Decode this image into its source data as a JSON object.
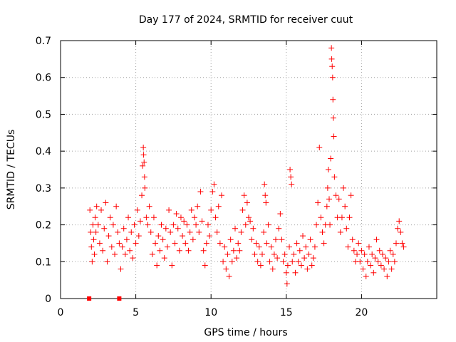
{
  "chart_data": {
    "type": "scatter",
    "title": "Day 177 of 2024, SRMTID for receiver cuut",
    "xlabel": "GPS time / hours",
    "ylabel": "SRMTID / TECUs",
    "xlim": [
      0,
      25
    ],
    "ylim": [
      0,
      0.7
    ],
    "xticks": [
      0,
      5,
      10,
      15,
      20
    ],
    "yticks": [
      0,
      0.1,
      0.2,
      0.3,
      0.4,
      0.5,
      0.6,
      0.7
    ],
    "xtick_labels": [
      "0",
      "5",
      "10",
      "15",
      "20"
    ],
    "ytick_labels": [
      "0",
      "0.1",
      "0.2",
      "0.3",
      "0.4",
      "0.5",
      "0.6",
      "0.7"
    ],
    "grid": true,
    "marker": "plus",
    "color": "#ff0000",
    "zero_markers": [
      {
        "x": 1.9,
        "y": 0
      },
      {
        "x": 3.9,
        "y": 0
      }
    ],
    "series": [
      {
        "name": "SRMTID",
        "points": [
          [
            1.95,
            0.24
          ],
          [
            2.0,
            0.18
          ],
          [
            2.05,
            0.14
          ],
          [
            2.1,
            0.1
          ],
          [
            2.15,
            0.2
          ],
          [
            2.2,
            0.16
          ],
          [
            2.25,
            0.12
          ],
          [
            2.3,
            0.22
          ],
          [
            2.35,
            0.18
          ],
          [
            2.4,
            0.25
          ],
          [
            2.5,
            0.2
          ],
          [
            2.6,
            0.15
          ],
          [
            2.7,
            0.24
          ],
          [
            2.8,
            0.13
          ],
          [
            2.9,
            0.19
          ],
          [
            3.0,
            0.26
          ],
          [
            3.1,
            0.1
          ],
          [
            3.2,
            0.17
          ],
          [
            3.3,
            0.22
          ],
          [
            3.4,
            0.14
          ],
          [
            3.5,
            0.2
          ],
          [
            3.6,
            0.12
          ],
          [
            3.7,
            0.25
          ],
          [
            3.8,
            0.18
          ],
          [
            3.9,
            0.15
          ],
          [
            4.0,
            0.08
          ],
          [
            4.1,
            0.14
          ],
          [
            4.2,
            0.19
          ],
          [
            4.3,
            0.12
          ],
          [
            4.4,
            0.16
          ],
          [
            4.5,
            0.22
          ],
          [
            4.6,
            0.13
          ],
          [
            4.7,
            0.18
          ],
          [
            4.8,
            0.11
          ],
          [
            4.9,
            0.2
          ],
          [
            5.0,
            0.15
          ],
          [
            5.1,
            0.24
          ],
          [
            5.2,
            0.17
          ],
          [
            5.3,
            0.21
          ],
          [
            5.4,
            0.28
          ],
          [
            5.45,
            0.36
          ],
          [
            5.5,
            0.41
          ],
          [
            5.52,
            0.39
          ],
          [
            5.55,
            0.37
          ],
          [
            5.58,
            0.33
          ],
          [
            5.6,
            0.3
          ],
          [
            5.7,
            0.22
          ],
          [
            5.8,
            0.2
          ],
          [
            5.9,
            0.25
          ],
          [
            6.0,
            0.18
          ],
          [
            6.1,
            0.12
          ],
          [
            6.2,
            0.22
          ],
          [
            6.3,
            0.15
          ],
          [
            6.4,
            0.09
          ],
          [
            6.5,
            0.17
          ],
          [
            6.6,
            0.13
          ],
          [
            6.7,
            0.2
          ],
          [
            6.8,
            0.16
          ],
          [
            6.9,
            0.11
          ],
          [
            7.0,
            0.19
          ],
          [
            7.1,
            0.14
          ],
          [
            7.2,
            0.24
          ],
          [
            7.3,
            0.18
          ],
          [
            7.4,
            0.09
          ],
          [
            7.5,
            0.2
          ],
          [
            7.6,
            0.15
          ],
          [
            7.7,
            0.23
          ],
          [
            7.8,
            0.19
          ],
          [
            7.9,
            0.13
          ],
          [
            8.0,
            0.22
          ],
          [
            8.1,
            0.17
          ],
          [
            8.2,
            0.21
          ],
          [
            8.3,
            0.15
          ],
          [
            8.4,
            0.2
          ],
          [
            8.5,
            0.13
          ],
          [
            8.6,
            0.18
          ],
          [
            8.7,
            0.24
          ],
          [
            8.8,
            0.16
          ],
          [
            8.9,
            0.22
          ],
          [
            9.0,
            0.2
          ],
          [
            9.1,
            0.25
          ],
          [
            9.2,
            0.18
          ],
          [
            9.3,
            0.29
          ],
          [
            9.4,
            0.21
          ],
          [
            9.5,
            0.13
          ],
          [
            9.6,
            0.09
          ],
          [
            9.7,
            0.15
          ],
          [
            9.8,
            0.2
          ],
          [
            9.9,
            0.17
          ],
          [
            10.0,
            0.24
          ],
          [
            10.1,
            0.29
          ],
          [
            10.2,
            0.31
          ],
          [
            10.3,
            0.22
          ],
          [
            10.4,
            0.18
          ],
          [
            10.5,
            0.25
          ],
          [
            10.6,
            0.15
          ],
          [
            10.7,
            0.28
          ],
          [
            10.8,
            0.1
          ],
          [
            10.9,
            0.14
          ],
          [
            11.0,
            0.08
          ],
          [
            11.1,
            0.12
          ],
          [
            11.2,
            0.06
          ],
          [
            11.3,
            0.16
          ],
          [
            11.4,
            0.1
          ],
          [
            11.5,
            0.13
          ],
          [
            11.6,
            0.19
          ],
          [
            11.7,
            0.11
          ],
          [
            11.8,
            0.15
          ],
          [
            11.9,
            0.13
          ],
          [
            12.0,
            0.18
          ],
          [
            12.1,
            0.24
          ],
          [
            12.2,
            0.28
          ],
          [
            12.3,
            0.2
          ],
          [
            12.4,
            0.26
          ],
          [
            12.5,
            0.22
          ],
          [
            12.6,
            0.21
          ],
          [
            12.7,
            0.16
          ],
          [
            12.8,
            0.19
          ],
          [
            12.9,
            0.12
          ],
          [
            13.0,
            0.15
          ],
          [
            13.1,
            0.1
          ],
          [
            13.2,
            0.14
          ],
          [
            13.3,
            0.09
          ],
          [
            13.4,
            0.12
          ],
          [
            13.5,
            0.18
          ],
          [
            13.55,
            0.31
          ],
          [
            13.6,
            0.28
          ],
          [
            13.65,
            0.26
          ],
          [
            13.7,
            0.15
          ],
          [
            13.8,
            0.2
          ],
          [
            13.9,
            0.1
          ],
          [
            14.0,
            0.14
          ],
          [
            14.1,
            0.08
          ],
          [
            14.2,
            0.12
          ],
          [
            14.3,
            0.16
          ],
          [
            14.4,
            0.11
          ],
          [
            14.5,
            0.19
          ],
          [
            14.6,
            0.23
          ],
          [
            14.7,
            0.16
          ],
          [
            14.8,
            0.1
          ],
          [
            14.9,
            0.12
          ],
          [
            15.0,
            0.07
          ],
          [
            15.05,
            0.04
          ],
          [
            15.1,
            0.09
          ],
          [
            15.2,
            0.14
          ],
          [
            15.25,
            0.35
          ],
          [
            15.3,
            0.33
          ],
          [
            15.35,
            0.31
          ],
          [
            15.4,
            0.1
          ],
          [
            15.5,
            0.12
          ],
          [
            15.6,
            0.07
          ],
          [
            15.7,
            0.15
          ],
          [
            15.8,
            0.1
          ],
          [
            15.9,
            0.13
          ],
          [
            16.0,
            0.09
          ],
          [
            16.1,
            0.17
          ],
          [
            16.2,
            0.11
          ],
          [
            16.3,
            0.14
          ],
          [
            16.4,
            0.08
          ],
          [
            16.5,
            0.12
          ],
          [
            16.6,
            0.16
          ],
          [
            16.7,
            0.09
          ],
          [
            16.8,
            0.11
          ],
          [
            16.9,
            0.14
          ],
          [
            17.0,
            0.2
          ],
          [
            17.1,
            0.26
          ],
          [
            17.2,
            0.41
          ],
          [
            17.3,
            0.22
          ],
          [
            17.4,
            0.18
          ],
          [
            17.5,
            0.15
          ],
          [
            17.6,
            0.2
          ],
          [
            17.7,
            0.25
          ],
          [
            17.75,
            0.3
          ],
          [
            17.8,
            0.35
          ],
          [
            17.85,
            0.27
          ],
          [
            17.9,
            0.2
          ],
          [
            17.95,
            0.38
          ],
          [
            18.0,
            0.68
          ],
          [
            18.02,
            0.65
          ],
          [
            18.05,
            0.63
          ],
          [
            18.08,
            0.6
          ],
          [
            18.1,
            0.54
          ],
          [
            18.13,
            0.49
          ],
          [
            18.16,
            0.44
          ],
          [
            18.2,
            0.33
          ],
          [
            18.3,
            0.28
          ],
          [
            18.4,
            0.22
          ],
          [
            18.5,
            0.27
          ],
          [
            18.6,
            0.18
          ],
          [
            18.7,
            0.22
          ],
          [
            18.8,
            0.3
          ],
          [
            18.9,
            0.25
          ],
          [
            19.0,
            0.19
          ],
          [
            19.1,
            0.14
          ],
          [
            19.2,
            0.22
          ],
          [
            19.3,
            0.28
          ],
          [
            19.4,
            0.16
          ],
          [
            19.5,
            0.13
          ],
          [
            19.6,
            0.1
          ],
          [
            19.7,
            0.12
          ],
          [
            19.8,
            0.15
          ],
          [
            19.9,
            0.1
          ],
          [
            20.0,
            0.13
          ],
          [
            20.1,
            0.08
          ],
          [
            20.2,
            0.12
          ],
          [
            20.3,
            0.06
          ],
          [
            20.4,
            0.1
          ],
          [
            20.5,
            0.14
          ],
          [
            20.6,
            0.09
          ],
          [
            20.7,
            0.12
          ],
          [
            20.8,
            0.07
          ],
          [
            20.9,
            0.11
          ],
          [
            21.0,
            0.16
          ],
          [
            21.1,
            0.1
          ],
          [
            21.2,
            0.13
          ],
          [
            21.3,
            0.09
          ],
          [
            21.4,
            0.12
          ],
          [
            21.5,
            0.08
          ],
          [
            21.6,
            0.11
          ],
          [
            21.7,
            0.06
          ],
          [
            21.8,
            0.1
          ],
          [
            21.9,
            0.13
          ],
          [
            22.0,
            0.08
          ],
          [
            22.1,
            0.12
          ],
          [
            22.2,
            0.1
          ],
          [
            22.3,
            0.15
          ],
          [
            22.4,
            0.19
          ],
          [
            22.5,
            0.21
          ],
          [
            22.6,
            0.18
          ],
          [
            22.7,
            0.15
          ],
          [
            22.8,
            0.14
          ]
        ]
      }
    ]
  }
}
